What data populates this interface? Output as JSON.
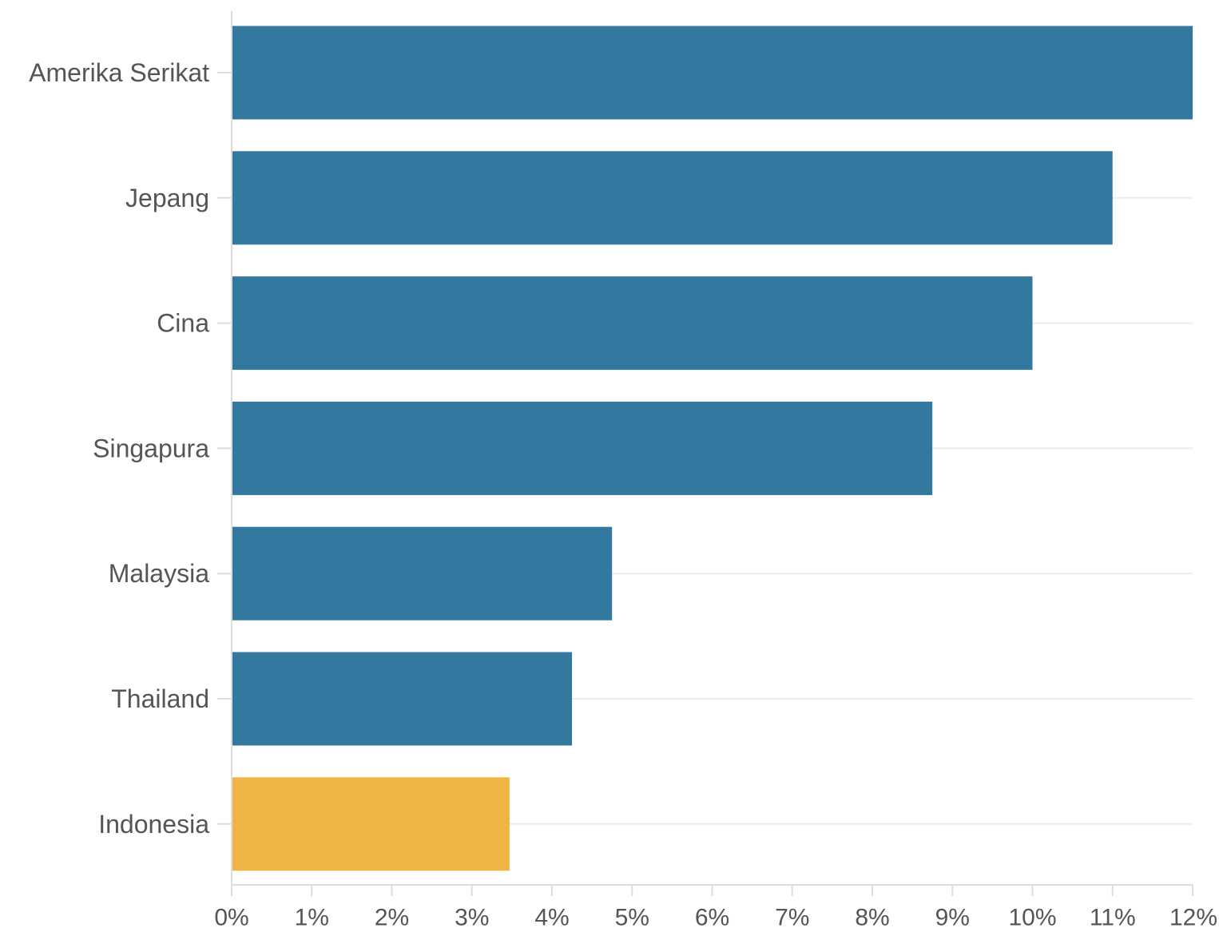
{
  "chart_data": {
    "type": "bar",
    "orientation": "horizontal",
    "categories": [
      "Amerika Serikat",
      "Jepang",
      "Cina",
      "Singapura",
      "Malaysia",
      "Thailand",
      "Indonesia"
    ],
    "values": [
      12,
      11,
      10,
      8.75,
      4.75,
      4.25,
      3.47
    ],
    "unit": "%",
    "xlim": [
      0,
      12
    ],
    "x_ticks": [
      "0%",
      "1%",
      "2%",
      "3%",
      "4%",
      "5%",
      "6%",
      "7%",
      "8%",
      "9%",
      "10%",
      "11%",
      "12%"
    ],
    "title": "",
    "xlabel": "",
    "ylabel": "",
    "grid": "horizontal, light",
    "legend": "none",
    "highlight_category": "Indonesia",
    "colors": {
      "default_bar": "#33789f",
      "highlight_bar": "#efb444",
      "gridline": "#ececec",
      "axis": "#dddddd",
      "text": "#555555"
    }
  }
}
